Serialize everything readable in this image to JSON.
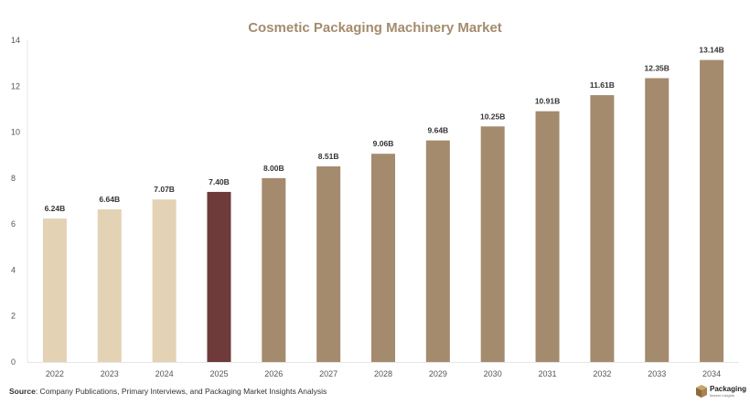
{
  "chart_data": {
    "type": "bar",
    "title": "Cosmetic Packaging Machinery Market",
    "categories": [
      "2022",
      "2023",
      "2024",
      "2025",
      "2026",
      "2027",
      "2028",
      "2029",
      "2030",
      "2031",
      "2032",
      "2033",
      "2034"
    ],
    "values": [
      6.24,
      6.64,
      7.07,
      7.4,
      8.0,
      8.51,
      9.06,
      9.64,
      10.25,
      10.91,
      11.61,
      12.35,
      13.14
    ],
    "data_labels": [
      "6.24B",
      "6.64B",
      "7.07B",
      "7.40B",
      "8.00B",
      "8.51B",
      "9.06B",
      "9.64B",
      "10.25B",
      "10.91B",
      "11.61B",
      "12.35B",
      "13.14B"
    ],
    "ylim": [
      0,
      14
    ],
    "yticks": [
      0,
      2,
      4,
      6,
      8,
      10,
      12,
      14
    ],
    "grid": false,
    "colors": {
      "historical": "#e3d2b4",
      "current": "#6e3a3a",
      "forecast": "#a48b6d"
    },
    "color_groups": [
      "historical",
      "historical",
      "historical",
      "current",
      "forecast",
      "forecast",
      "forecast",
      "forecast",
      "forecast",
      "forecast",
      "forecast",
      "forecast",
      "forecast"
    ]
  },
  "source": {
    "label": "Source",
    "text": ": Company Publications, Primary Interviews, and Packaging Market Insights Analysis"
  },
  "logo": {
    "name": "Packaging",
    "tagline": "Market Insights",
    "icon": "box-icon"
  }
}
